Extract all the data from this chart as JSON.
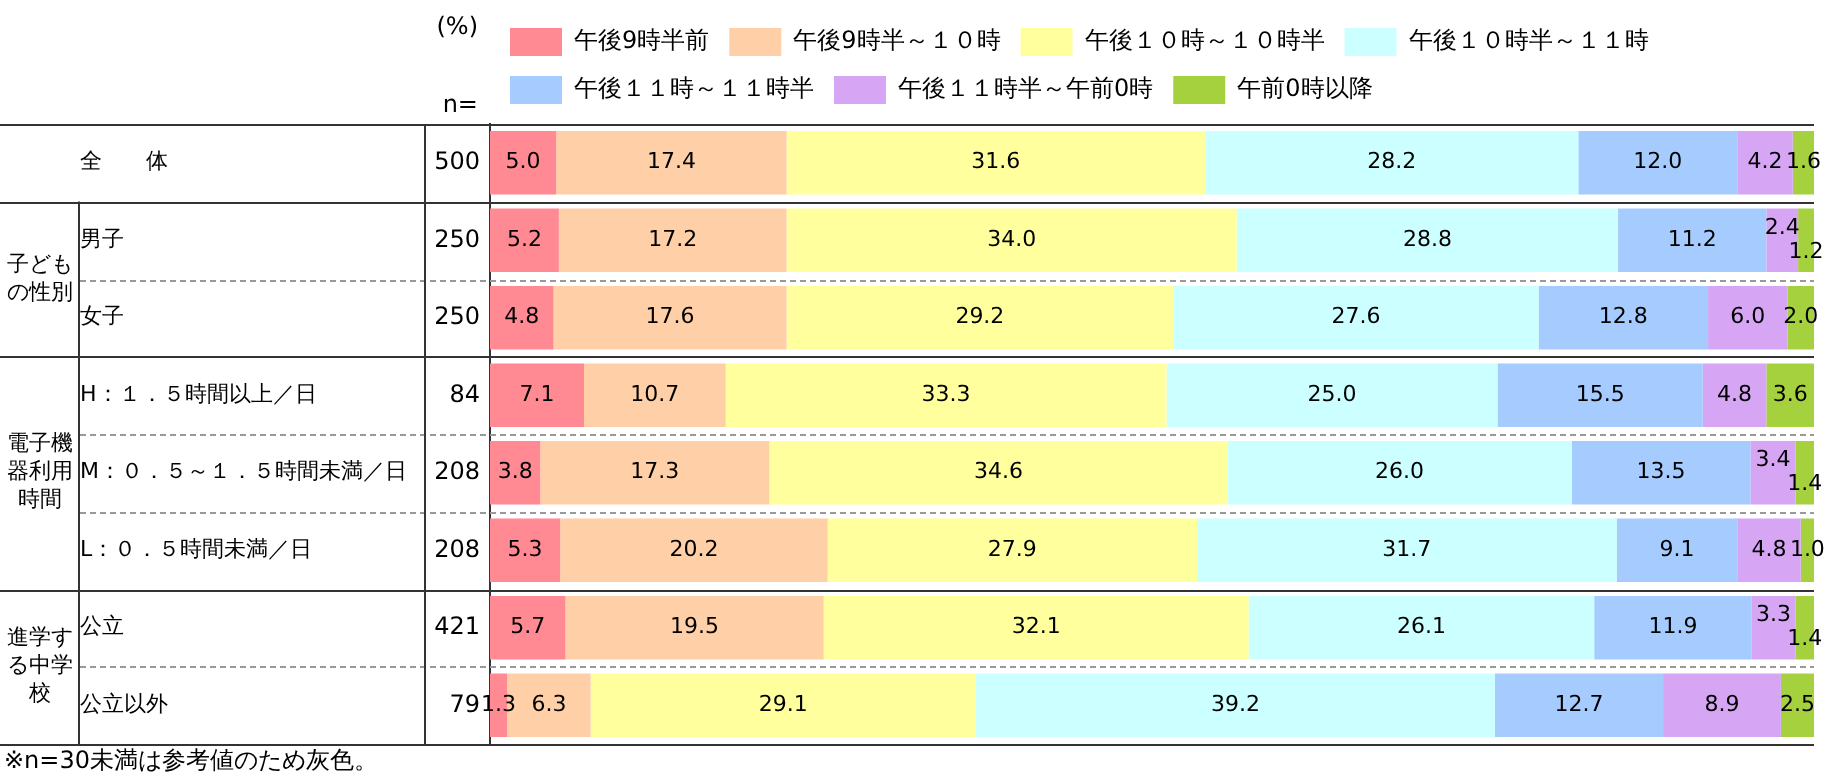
{
  "chart_data": {
    "type": "bar",
    "orientation": "horizontal",
    "stacked": true,
    "legend": "top",
    "tick_labels": "y",
    "xlim": [
      0,
      100
    ],
    "categories": [
      "全　　体",
      "男子",
      "女子",
      "H：１．５時間以上／日",
      "M：０．５～１．５時間未満／日",
      "L：０．５時間未満／日",
      "公立",
      "公立以外"
    ],
    "series": [
      {
        "name": "午後9時半前",
        "color": "#ff8a94",
        "values": [
          5.0,
          5.2,
          4.8,
          7.1,
          3.8,
          5.3,
          5.7,
          1.3
        ],
        "value_labels": [
          "5.0",
          "5.2",
          "4.8",
          "7.1",
          "3.8",
          "5.3",
          "5.7",
          "1.3"
        ]
      },
      {
        "name": "午後9時半～１０時",
        "color": "#ffcfa8",
        "values": [
          17.4,
          17.2,
          17.6,
          10.7,
          17.3,
          20.2,
          19.5,
          6.3
        ],
        "value_labels": [
          "17.4",
          "17.2",
          "17.6",
          "10.7",
          "17.3",
          "20.2",
          "19.5",
          "6.3"
        ]
      },
      {
        "name": "午後１０時～１０時半",
        "color": "#ffff9e",
        "values": [
          31.6,
          34.0,
          29.2,
          33.3,
          34.6,
          27.9,
          32.1,
          29.1
        ],
        "value_labels": [
          "31.6",
          "34.0",
          "29.2",
          "33.3",
          "34.6",
          "27.9",
          "32.1",
          "29.1"
        ]
      },
      {
        "name": "午後１０時半～１１時",
        "color": "#ccffff",
        "values": [
          28.2,
          28.8,
          27.6,
          25.0,
          26.0,
          31.7,
          26.1,
          39.2
        ],
        "value_labels": [
          "28.2",
          "28.8",
          "27.6",
          "25.0",
          "26.0",
          "31.7",
          "26.1",
          "39.2"
        ]
      },
      {
        "name": "午後１１時～１１時半",
        "color": "#a6ccff",
        "values": [
          12.0,
          11.2,
          12.8,
          15.5,
          13.5,
          9.1,
          11.9,
          12.7
        ],
        "value_labels": [
          "12.0",
          "11.2",
          "12.8",
          "15.5",
          "13.5",
          "9.1",
          "11.9",
          "12.7"
        ]
      },
      {
        "name": "午後１１時半～午前0時",
        "color": "#d6a6f5",
        "values": [
          4.2,
          2.4,
          6.0,
          4.8,
          3.4,
          4.8,
          3.3,
          8.9
        ],
        "value_labels": [
          "4.2",
          "2.4",
          "6.0",
          "4.8",
          "3.4",
          "4.8",
          "3.3",
          "8.9"
        ]
      },
      {
        "name": "午前0時以降",
        "color": "#a6d13f",
        "values": [
          1.6,
          1.2,
          2.0,
          3.6,
          1.4,
          1.0,
          1.4,
          2.5
        ],
        "value_labels": [
          "1.6",
          "1.2",
          "2.0",
          "3.6",
          "1.4",
          "1.0",
          "1.4",
          "2.5"
        ]
      }
    ],
    "annotations": [
      "(%)",
      "n=",
      "子どもの性別",
      "電子機器利用時間",
      "進学する中学校",
      "※n=30未満は参考値のため灰色。",
      "500",
      "250",
      "250",
      "84",
      "208",
      "208",
      "421",
      "79"
    ]
  }
}
